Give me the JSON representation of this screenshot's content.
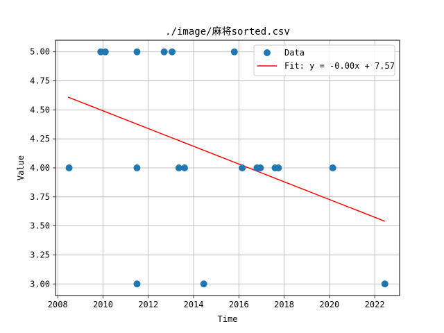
{
  "chart_data": {
    "type": "scatter",
    "title": "./image/麻将sorted.csv",
    "xlabel": "Time",
    "ylabel": "Value",
    "xlim": [
      2007.9,
      2023.1
    ],
    "ylim": [
      2.9,
      5.1
    ],
    "xticks": [
      2008,
      2010,
      2012,
      2014,
      2016,
      2018,
      2020,
      2022
    ],
    "yticks": [
      3.0,
      3.25,
      3.5,
      3.75,
      4.0,
      4.25,
      4.5,
      4.75,
      5.0
    ],
    "xtick_labels": [
      "2008",
      "2010",
      "2012",
      "2014",
      "2016",
      "2018",
      "2020",
      "2022"
    ],
    "ytick_labels": [
      "3.00",
      "3.25",
      "3.50",
      "3.75",
      "4.00",
      "4.25",
      "4.50",
      "4.75",
      "5.00"
    ],
    "grid": true,
    "legend_position": "top-right",
    "series": [
      {
        "name": "Data",
        "kind": "scatter",
        "color": "#1f77b4",
        "points": [
          [
            2008.5,
            4.0
          ],
          [
            2009.9,
            5.0
          ],
          [
            2010.1,
            5.0
          ],
          [
            2011.5,
            5.0
          ],
          [
            2011.5,
            4.0
          ],
          [
            2011.5,
            3.0
          ],
          [
            2012.7,
            5.0
          ],
          [
            2013.05,
            5.0
          ],
          [
            2013.35,
            4.0
          ],
          [
            2013.6,
            4.0
          ],
          [
            2014.45,
            3.0
          ],
          [
            2015.8,
            5.0
          ],
          [
            2016.15,
            4.0
          ],
          [
            2016.8,
            4.0
          ],
          [
            2016.95,
            4.0
          ],
          [
            2017.6,
            4.0
          ],
          [
            2017.75,
            4.0
          ],
          [
            2020.15,
            4.0
          ],
          [
            2022.45,
            3.0
          ]
        ]
      },
      {
        "name": "Fit: y = -0.00x + 7.57",
        "kind": "line",
        "color": "#ff0000",
        "points": [
          [
            2008.45,
            4.61
          ],
          [
            2022.45,
            3.54
          ]
        ]
      }
    ]
  }
}
